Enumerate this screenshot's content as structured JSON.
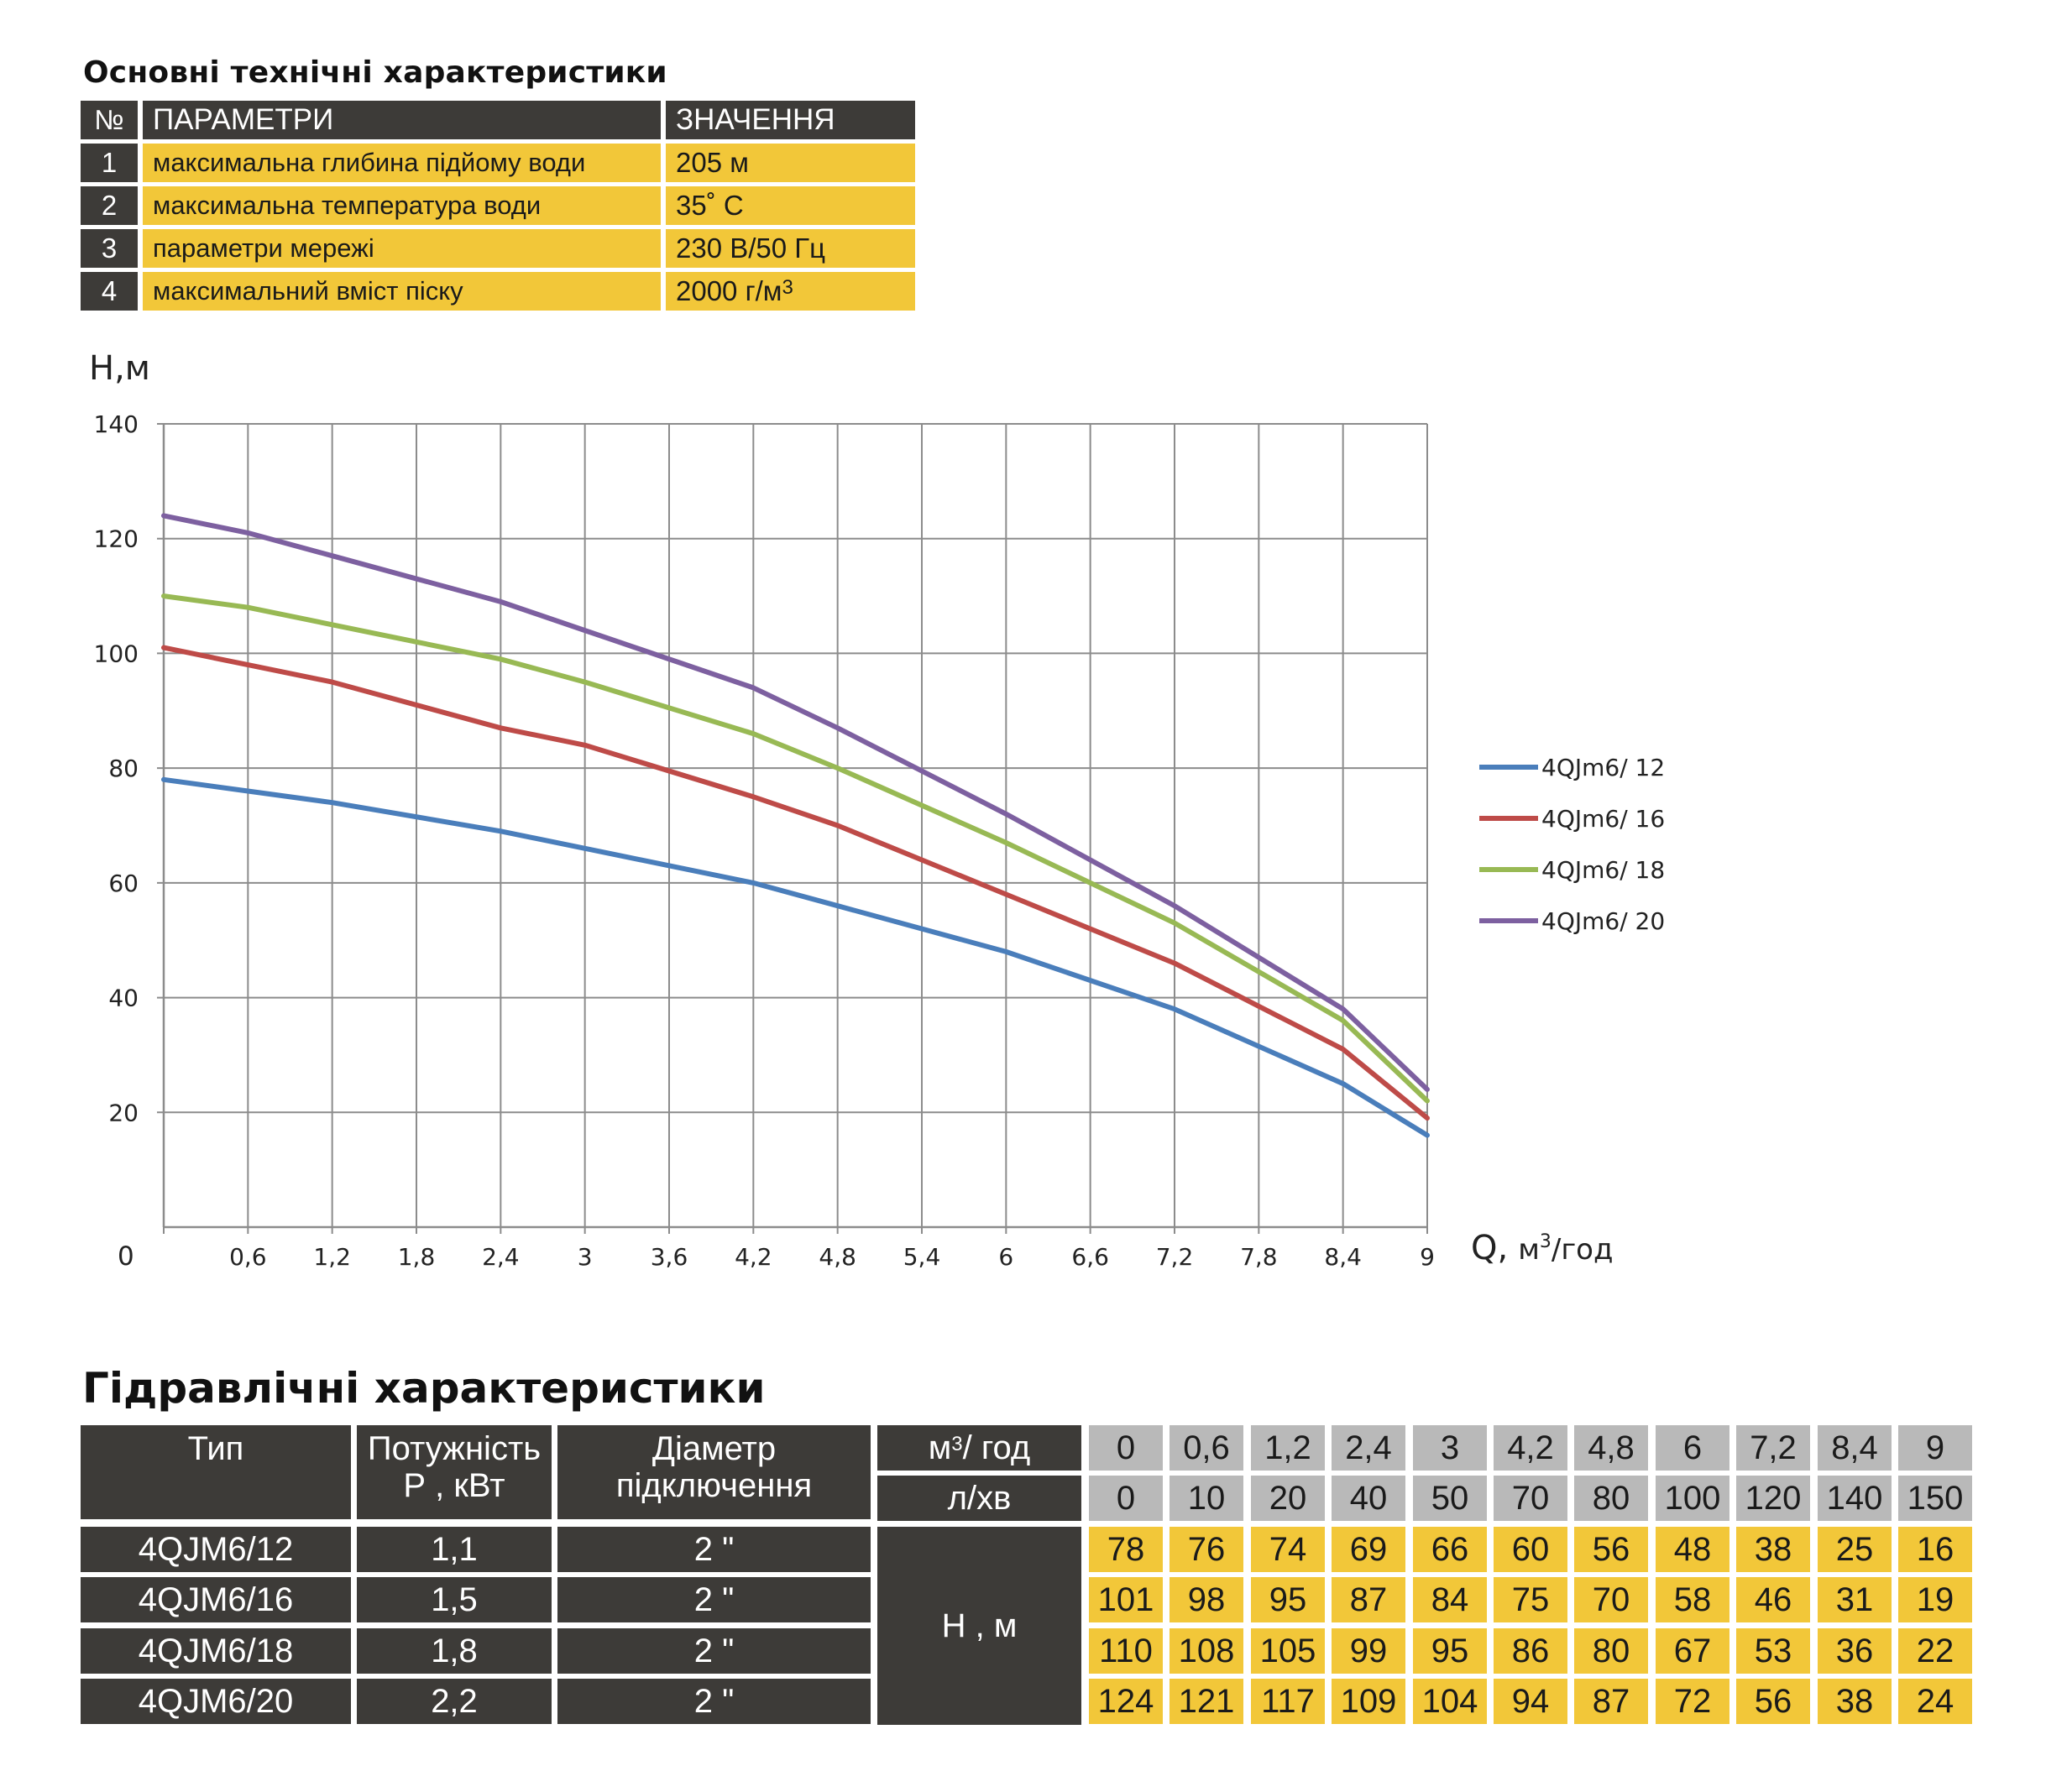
{
  "spec": {
    "title": "Основні технічні характеристики",
    "headers": {
      "num": "№",
      "param": "ПАРАМЕТРИ",
      "value": "ЗНАЧЕННЯ"
    },
    "rows": [
      {
        "num": "1",
        "param": "максимальна глибина підйому води",
        "value": "205 м"
      },
      {
        "num": "2",
        "param": "максимальна температура води",
        "value": "35˚ С"
      },
      {
        "num": "3",
        "param": "параметри мережі",
        "value": "230 В/50 Гц"
      },
      {
        "num": "4",
        "param": "максимальний вміст піску",
        "value": "2000 г/м",
        "value_sup": "3"
      }
    ]
  },
  "chart_data": {
    "type": "line",
    "ylabel": "Н,м",
    "xlabel_main": "Q,",
    "xlabel_unit": "м",
    "xlabel_unit_sup": "3",
    "xlabel_unit_tail": "/год",
    "origin_label": "0",
    "ylim": [
      0,
      140
    ],
    "xlim": [
      0,
      9
    ],
    "yticks": [
      "20",
      "40",
      "60",
      "80",
      "100",
      "120",
      "140"
    ],
    "xticks": [
      "0,6",
      "1,2",
      "1,8",
      "2,4",
      "3",
      "3,6",
      "4,2",
      "4,8",
      "5,4",
      "6",
      "6,6",
      "7,2",
      "7,8",
      "8,4",
      "9"
    ],
    "grid": true,
    "legend_position": "right",
    "x": [
      0,
      0.6,
      1.2,
      2.4,
      3,
      4.2,
      4.8,
      6,
      7.2,
      8.4,
      9
    ],
    "series": [
      {
        "name": "4QJm6/ 12",
        "color": "#4a7ebb",
        "values": [
          78,
          76,
          74,
          69,
          66,
          60,
          56,
          48,
          38,
          25,
          16
        ]
      },
      {
        "name": "4QJm6/ 16",
        "color": "#be4b48",
        "values": [
          101,
          98,
          95,
          87,
          84,
          75,
          70,
          58,
          46,
          31,
          19
        ]
      },
      {
        "name": "4QJm6/ 18",
        "color": "#98b954",
        "values": [
          110,
          108,
          105,
          99,
          95,
          86,
          80,
          67,
          53,
          36,
          22
        ]
      },
      {
        "name": "4QJm6/ 20",
        "color": "#7d60a0",
        "values": [
          124,
          121,
          117,
          109,
          104,
          94,
          87,
          72,
          56,
          38,
          24
        ]
      }
    ]
  },
  "hydraulic": {
    "title": "Гідравлічні характеристики",
    "headers": {
      "type": "Тип",
      "power_line1": "Потужність",
      "power_line2": "Р , кВт",
      "diameter_line1": "Діаметр",
      "diameter_line2": "підключення",
      "flow_m3": "м",
      "flow_m3_sup": "3",
      "flow_m3_tail": "/ год",
      "flow_lmin": "л/хв",
      "head": "Н , м"
    },
    "flow_m3h": [
      "0",
      "0,6",
      "1,2",
      "2,4",
      "3",
      "4,2",
      "4,8",
      "6",
      "7,2",
      "8,4",
      "9"
    ],
    "flow_lmin_values": [
      "0",
      "10",
      "20",
      "40",
      "50",
      "70",
      "80",
      "100",
      "120",
      "140",
      "150"
    ],
    "rows": [
      {
        "type": "4QJM6/12",
        "power": "1,1",
        "diameter": "2 \"",
        "heads": [
          "78",
          "76",
          "74",
          "69",
          "66",
          "60",
          "56",
          "48",
          "38",
          "25",
          "16"
        ]
      },
      {
        "type": "4QJM6/16",
        "power": "1,5",
        "diameter": "2 \"",
        "heads": [
          "101",
          "98",
          "95",
          "87",
          "84",
          "75",
          "70",
          "58",
          "46",
          "31",
          "19"
        ]
      },
      {
        "type": "4QJM6/18",
        "power": "1,8",
        "diameter": "2 \"",
        "heads": [
          "110",
          "108",
          "105",
          "99",
          "95",
          "86",
          "80",
          "67",
          "53",
          "36",
          "22"
        ]
      },
      {
        "type": "4QJM6/20",
        "power": "2,2",
        "diameter": "2 \"",
        "heads": [
          "124",
          "121",
          "117",
          "109",
          "104",
          "94",
          "87",
          "72",
          "56",
          "38",
          "24"
        ]
      }
    ]
  }
}
